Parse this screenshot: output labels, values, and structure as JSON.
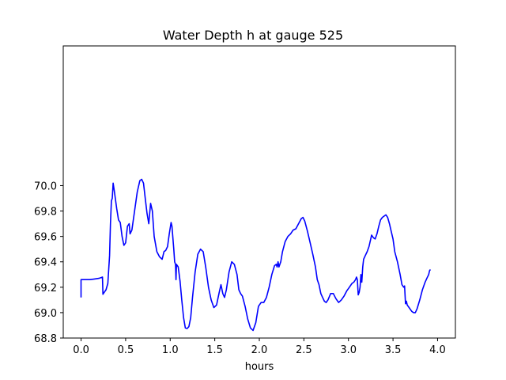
{
  "chart_data": {
    "type": "line",
    "title": "Water Depth h at gauge 525",
    "xlabel": "hours",
    "ylabel": "",
    "xlim": [
      -0.2,
      4.2
    ],
    "ylim": [
      68.8,
      71.1
    ],
    "grid": false,
    "legend": "none",
    "line_color": "#0000ff",
    "xticks": [
      {
        "value": 0.0,
        "label": "0.0"
      },
      {
        "value": 0.5,
        "label": "0.5"
      },
      {
        "value": 1.0,
        "label": "1.0"
      },
      {
        "value": 1.5,
        "label": "1.5"
      },
      {
        "value": 2.0,
        "label": "2.0"
      },
      {
        "value": 2.5,
        "label": "2.5"
      },
      {
        "value": 3.0,
        "label": "3.0"
      },
      {
        "value": 3.5,
        "label": "3.5"
      },
      {
        "value": 4.0,
        "label": "4.0"
      }
    ],
    "yticks": [
      {
        "value": 68.8,
        "label": "68.8"
      },
      {
        "value": 69.0,
        "label": "69.0"
      },
      {
        "value": 69.2,
        "label": "69.2"
      },
      {
        "value": 69.4,
        "label": "69.4"
      },
      {
        "value": 69.6,
        "label": "69.6"
      },
      {
        "value": 69.8,
        "label": "69.8"
      },
      {
        "value": 70.0,
        "label": "70.0"
      }
    ],
    "series": [
      {
        "points": [
          [
            0.0,
            69.12
          ],
          [
            0.0,
            69.26
          ],
          [
            0.05,
            69.26
          ],
          [
            0.1,
            69.26
          ],
          [
            0.15,
            69.265
          ],
          [
            0.2,
            69.27
          ],
          [
            0.24,
            69.28
          ],
          [
            0.245,
            69.145
          ],
          [
            0.26,
            69.16
          ],
          [
            0.28,
            69.18
          ],
          [
            0.3,
            69.23
          ],
          [
            0.32,
            69.45
          ],
          [
            0.33,
            69.7
          ],
          [
            0.34,
            69.88
          ],
          [
            0.35,
            69.9
          ],
          [
            0.36,
            70.02
          ],
          [
            0.37,
            69.97
          ],
          [
            0.38,
            69.92
          ],
          [
            0.4,
            69.82
          ],
          [
            0.42,
            69.73
          ],
          [
            0.44,
            69.71
          ],
          [
            0.46,
            69.6
          ],
          [
            0.48,
            69.53
          ],
          [
            0.5,
            69.55
          ],
          [
            0.52,
            69.68
          ],
          [
            0.54,
            69.7
          ],
          [
            0.55,
            69.62
          ],
          [
            0.57,
            69.65
          ],
          [
            0.6,
            69.8
          ],
          [
            0.63,
            69.95
          ],
          [
            0.66,
            70.04
          ],
          [
            0.68,
            70.05
          ],
          [
            0.7,
            70.02
          ],
          [
            0.72,
            69.9
          ],
          [
            0.74,
            69.78
          ],
          [
            0.76,
            69.7
          ],
          [
            0.77,
            69.78
          ],
          [
            0.78,
            69.86
          ],
          [
            0.8,
            69.8
          ],
          [
            0.82,
            69.6
          ],
          [
            0.85,
            69.48
          ],
          [
            0.88,
            69.44
          ],
          [
            0.91,
            69.42
          ],
          [
            0.93,
            69.48
          ],
          [
            0.95,
            69.49
          ],
          [
            0.97,
            69.52
          ],
          [
            0.99,
            69.62
          ],
          [
            1.01,
            69.71
          ],
          [
            1.02,
            69.68
          ],
          [
            1.04,
            69.5
          ],
          [
            1.05,
            69.4
          ],
          [
            1.06,
            69.38
          ],
          [
            1.065,
            69.26
          ],
          [
            1.07,
            69.38
          ],
          [
            1.09,
            69.36
          ],
          [
            1.11,
            69.25
          ],
          [
            1.13,
            69.1
          ],
          [
            1.15,
            68.96
          ],
          [
            1.17,
            68.88
          ],
          [
            1.19,
            68.875
          ],
          [
            1.21,
            68.89
          ],
          [
            1.23,
            68.96
          ],
          [
            1.25,
            69.12
          ],
          [
            1.28,
            69.32
          ],
          [
            1.31,
            69.46
          ],
          [
            1.34,
            69.5
          ],
          [
            1.37,
            69.48
          ],
          [
            1.4,
            69.35
          ],
          [
            1.43,
            69.2
          ],
          [
            1.46,
            69.1
          ],
          [
            1.49,
            69.04
          ],
          [
            1.52,
            69.06
          ],
          [
            1.55,
            69.16
          ],
          [
            1.57,
            69.22
          ],
          [
            1.59,
            69.15
          ],
          [
            1.61,
            69.12
          ],
          [
            1.63,
            69.18
          ],
          [
            1.66,
            69.32
          ],
          [
            1.69,
            69.4
          ],
          [
            1.72,
            69.38
          ],
          [
            1.75,
            69.3
          ],
          [
            1.77,
            69.18
          ],
          [
            1.79,
            69.15
          ],
          [
            1.81,
            69.13
          ],
          [
            1.84,
            69.05
          ],
          [
            1.87,
            68.95
          ],
          [
            1.9,
            68.88
          ],
          [
            1.93,
            68.86
          ],
          [
            1.96,
            68.92
          ],
          [
            1.99,
            69.05
          ],
          [
            2.02,
            69.08
          ],
          [
            2.05,
            69.08
          ],
          [
            2.08,
            69.12
          ],
          [
            2.11,
            69.2
          ],
          [
            2.14,
            69.3
          ],
          [
            2.17,
            69.37
          ],
          [
            2.19,
            69.38
          ],
          [
            2.2,
            69.36
          ],
          [
            2.21,
            69.4
          ],
          [
            2.22,
            69.36
          ],
          [
            2.24,
            69.4
          ],
          [
            2.26,
            69.48
          ],
          [
            2.29,
            69.56
          ],
          [
            2.32,
            69.6
          ],
          [
            2.35,
            69.62
          ],
          [
            2.38,
            69.65
          ],
          [
            2.41,
            69.66
          ],
          [
            2.44,
            69.7
          ],
          [
            2.47,
            69.74
          ],
          [
            2.49,
            69.75
          ],
          [
            2.51,
            69.72
          ],
          [
            2.54,
            69.64
          ],
          [
            2.57,
            69.55
          ],
          [
            2.6,
            69.46
          ],
          [
            2.63,
            69.36
          ],
          [
            2.65,
            69.26
          ],
          [
            2.67,
            69.22
          ],
          [
            2.69,
            69.15
          ],
          [
            2.71,
            69.12
          ],
          [
            2.73,
            69.09
          ],
          [
            2.75,
            69.08
          ],
          [
            2.77,
            69.1
          ],
          [
            2.8,
            69.15
          ],
          [
            2.83,
            69.15
          ],
          [
            2.86,
            69.11
          ],
          [
            2.89,
            69.08
          ],
          [
            2.92,
            69.1
          ],
          [
            2.95,
            69.13
          ],
          [
            2.98,
            69.17
          ],
          [
            3.01,
            69.2
          ],
          [
            3.04,
            69.23
          ],
          [
            3.06,
            69.24
          ],
          [
            3.08,
            69.26
          ],
          [
            3.09,
            69.28
          ],
          [
            3.1,
            69.26
          ],
          [
            3.11,
            69.14
          ],
          [
            3.12,
            69.16
          ],
          [
            3.13,
            69.2
          ],
          [
            3.14,
            69.3
          ],
          [
            3.15,
            69.24
          ],
          [
            3.16,
            69.36
          ],
          [
            3.17,
            69.42
          ],
          [
            3.19,
            69.45
          ],
          [
            3.21,
            69.48
          ],
          [
            3.23,
            69.52
          ],
          [
            3.25,
            69.58
          ],
          [
            3.26,
            69.61
          ],
          [
            3.28,
            69.59
          ],
          [
            3.3,
            69.58
          ],
          [
            3.32,
            69.62
          ],
          [
            3.34,
            69.68
          ],
          [
            3.36,
            69.73
          ],
          [
            3.38,
            69.75
          ],
          [
            3.4,
            69.76
          ],
          [
            3.42,
            69.77
          ],
          [
            3.44,
            69.75
          ],
          [
            3.46,
            69.7
          ],
          [
            3.48,
            69.64
          ],
          [
            3.5,
            69.58
          ],
          [
            3.52,
            69.48
          ],
          [
            3.55,
            69.4
          ],
          [
            3.58,
            69.3
          ],
          [
            3.6,
            69.22
          ],
          [
            3.62,
            69.2
          ],
          [
            3.63,
            69.21
          ],
          [
            3.64,
            69.07
          ],
          [
            3.65,
            69.09
          ],
          [
            3.66,
            69.06
          ],
          [
            3.68,
            69.04
          ],
          [
            3.71,
            69.01
          ],
          [
            3.73,
            69.0
          ],
          [
            3.75,
            69.0
          ],
          [
            3.77,
            69.03
          ],
          [
            3.8,
            69.1
          ],
          [
            3.83,
            69.18
          ],
          [
            3.86,
            69.24
          ],
          [
            3.88,
            69.27
          ],
          [
            3.9,
            69.3
          ],
          [
            3.91,
            69.33
          ],
          [
            3.92,
            69.34
          ]
        ]
      }
    ]
  }
}
